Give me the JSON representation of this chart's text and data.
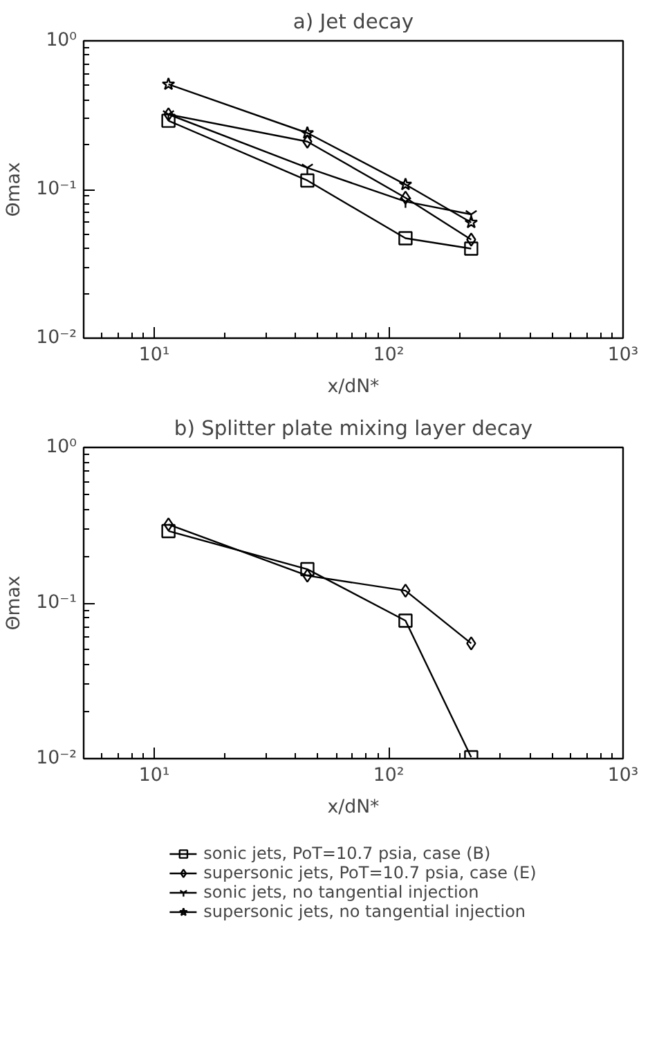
{
  "chart_data": [
    {
      "type": "line",
      "title": "a) Jet decay",
      "xlabel": "x/dN*",
      "ylabel": "Θmax",
      "log": "xy",
      "grid": false,
      "legend": false,
      "line_style": "solid",
      "xlim": [
        5,
        1000
      ],
      "ylim": [
        0.01,
        1
      ],
      "xticks": [
        {
          "value": 10,
          "label": "10¹"
        },
        {
          "value": 100,
          "label": "10²"
        },
        {
          "value": 1000,
          "label": "10³"
        }
      ],
      "yticks": [
        {
          "value": 0.01,
          "label": "10⁻²"
        },
        {
          "value": 0.1,
          "label": "10⁻¹"
        },
        {
          "value": 1,
          "label": "10⁰"
        }
      ],
      "x": [
        11.5,
        45,
        118,
        225
      ],
      "series": [
        {
          "color": "#000000",
          "marker": "square",
          "values": [
            0.29,
            0.115,
            0.047,
            0.04
          ]
        },
        {
          "color": "#000000",
          "marker": "diamond",
          "values": [
            0.32,
            0.21,
            0.088,
            0.046
          ]
        },
        {
          "color": "#000000",
          "marker": "cross",
          "values": [
            0.32,
            0.14,
            0.083,
            0.068
          ]
        },
        {
          "color": "#000000",
          "marker": "star",
          "values": [
            0.51,
            0.24,
            0.108,
            0.06
          ]
        }
      ]
    },
    {
      "type": "line",
      "title": "b) Splitter plate mixing layer decay",
      "xlabel": "x/dN*",
      "ylabel": "Θmax",
      "log": "xy",
      "grid": false,
      "legend": "bottom",
      "line_style": "solid",
      "xlim": [
        5,
        1000
      ],
      "ylim": [
        0.01,
        1
      ],
      "xticks": [
        {
          "value": 10,
          "label": "10¹"
        },
        {
          "value": 100,
          "label": "10²"
        },
        {
          "value": 1000,
          "label": "10³"
        }
      ],
      "yticks": [
        {
          "value": 0.01,
          "label": "10⁻²"
        },
        {
          "value": 0.1,
          "label": "10⁻¹"
        },
        {
          "value": 1,
          "label": "10⁰"
        }
      ],
      "x": [
        11.5,
        45,
        118,
        225
      ],
      "series": [
        {
          "name": "sonic jets, PoT=10.7 psia, case (B)",
          "color": "#000000",
          "marker": "square",
          "values": [
            0.29,
            0.165,
            0.077,
            0.0102
          ]
        },
        {
          "name": "supersonic jets, PoT=10.7 psia, case (E)",
          "color": "#000000",
          "marker": "diamond",
          "values": [
            0.32,
            0.15,
            0.12,
            0.055
          ]
        },
        {
          "name": "sonic jets, no tangential injection",
          "color": "#000000",
          "marker": "cross",
          "values": [
            null,
            null,
            null,
            null
          ]
        },
        {
          "name": "supersonic jets, no tangential injection",
          "color": "#000000",
          "marker": "star",
          "values": [
            null,
            null,
            null,
            null
          ]
        }
      ]
    }
  ]
}
